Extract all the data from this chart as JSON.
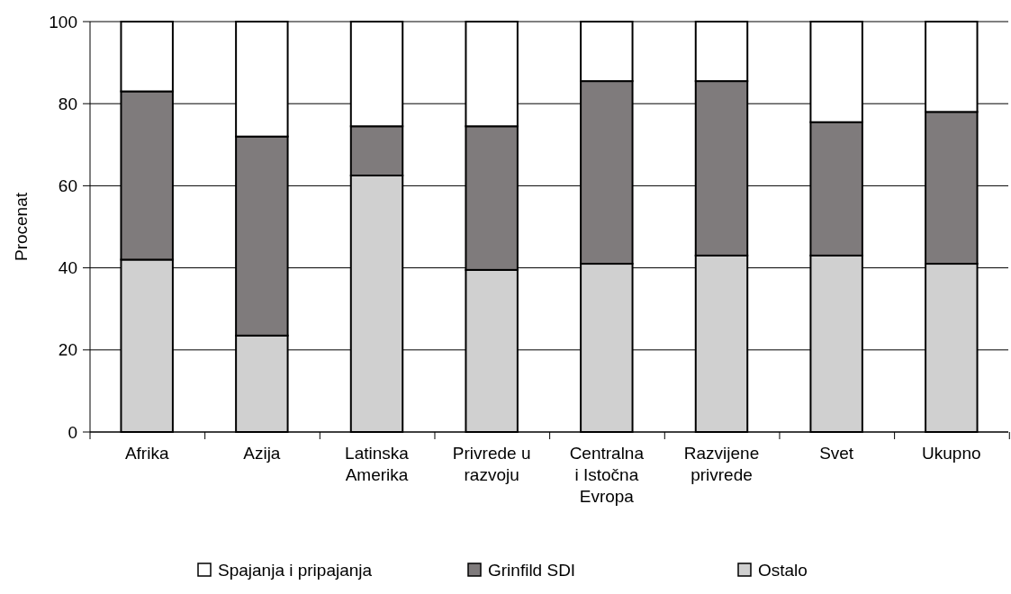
{
  "chart_data": {
    "type": "bar",
    "stacked": true,
    "ylabel": "Procenat",
    "categories": [
      "Afrika",
      "Azija",
      "Latinska Amerika",
      "Privrede u razvoju",
      "Centralna i Istočna Evropa",
      "Razvijene privrede",
      "Svet",
      "Ukupno"
    ],
    "series": [
      {
        "name": "Ostalo",
        "color": "#d0d0d0",
        "values": [
          42,
          23.5,
          62.5,
          39.5,
          41,
          43,
          43,
          41
        ]
      },
      {
        "name": "Grinfild SDI",
        "color": "#7f7b7c",
        "values": [
          41,
          48.5,
          12,
          35,
          44.5,
          42.5,
          32.5,
          37
        ]
      },
      {
        "name": "Spajanja i pripajanja",
        "color": "#ffffff",
        "values": [
          17,
          28,
          25.5,
          25.5,
          14.5,
          14.5,
          24.5,
          22
        ]
      }
    ],
    "ylim": [
      0,
      100
    ],
    "yticks": [
      0,
      20,
      40,
      60,
      80,
      100
    ],
    "grid": "y",
    "legend": "bottom"
  }
}
